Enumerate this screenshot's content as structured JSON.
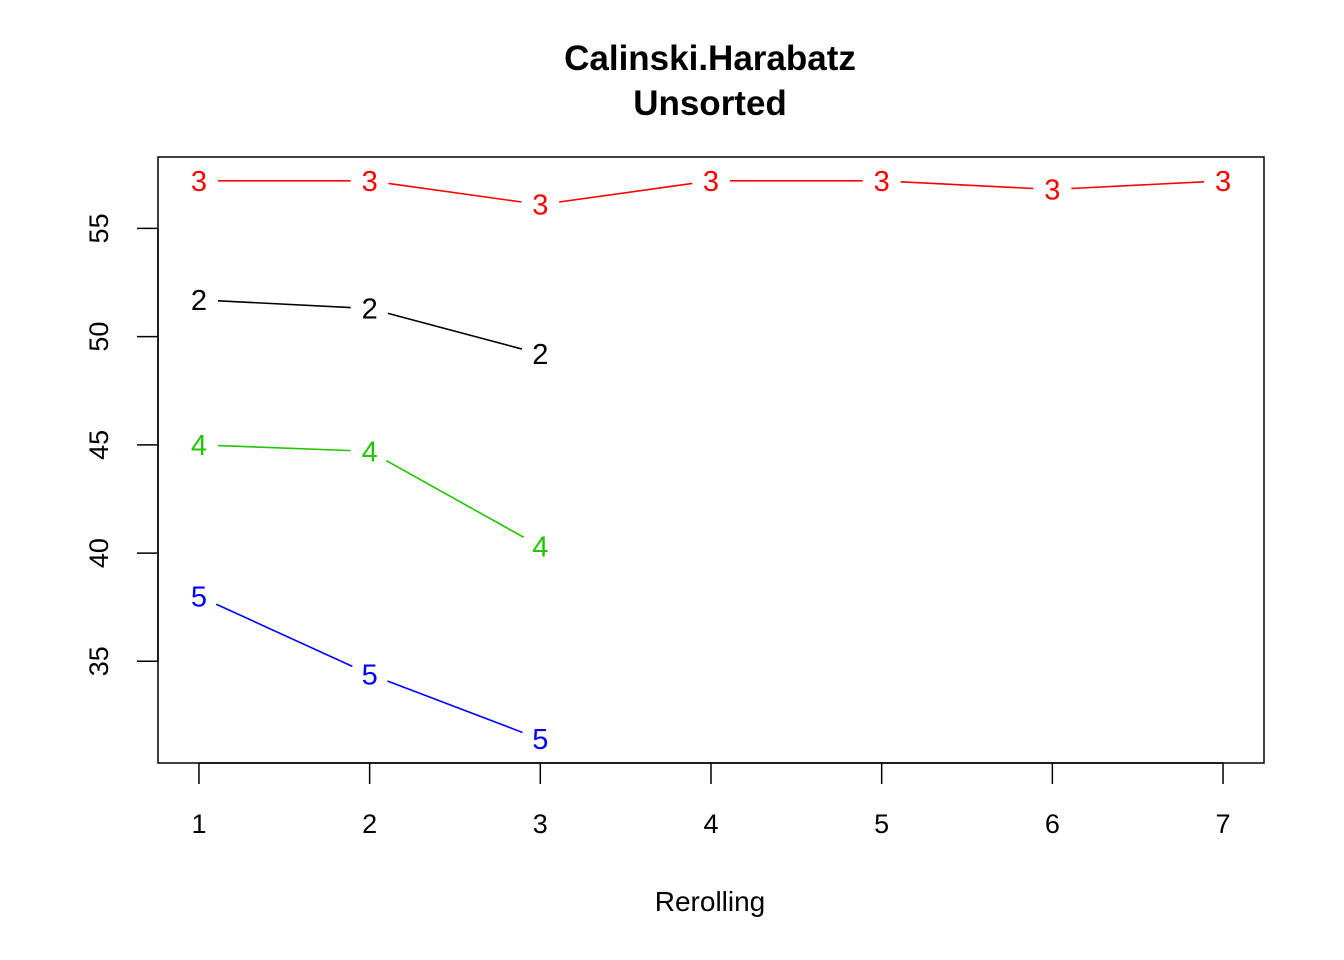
{
  "chart_data": {
    "type": "line",
    "title": "Calinski.Harabatz",
    "subtitle": "Unsorted",
    "xlabel": "Rerolling",
    "ylabel": "",
    "x_ticks": [
      1,
      2,
      3,
      4,
      5,
      6,
      7
    ],
    "y_ticks": [
      35,
      40,
      45,
      50,
      55
    ],
    "xlim": [
      0.76,
      7.24
    ],
    "ylim": [
      30.3,
      58.3
    ],
    "grid": false,
    "legend": "none",
    "series": [
      {
        "label": "3",
        "color": "#ff0000",
        "x": [
          1,
          2,
          3,
          4,
          5,
          6,
          7
        ],
        "values": [
          57.2,
          57.2,
          56.1,
          57.2,
          57.2,
          56.8,
          57.2
        ]
      },
      {
        "label": "2",
        "color": "#000000",
        "x": [
          1,
          2,
          3
        ],
        "values": [
          51.7,
          51.3,
          49.2
        ]
      },
      {
        "label": "4",
        "color": "#22c400",
        "x": [
          1,
          2,
          3
        ],
        "values": [
          45.0,
          44.7,
          40.3
        ]
      },
      {
        "label": "5",
        "color": "#0000ff",
        "x": [
          1,
          2,
          3
        ],
        "values": [
          38.0,
          34.4,
          31.4
        ]
      }
    ]
  }
}
